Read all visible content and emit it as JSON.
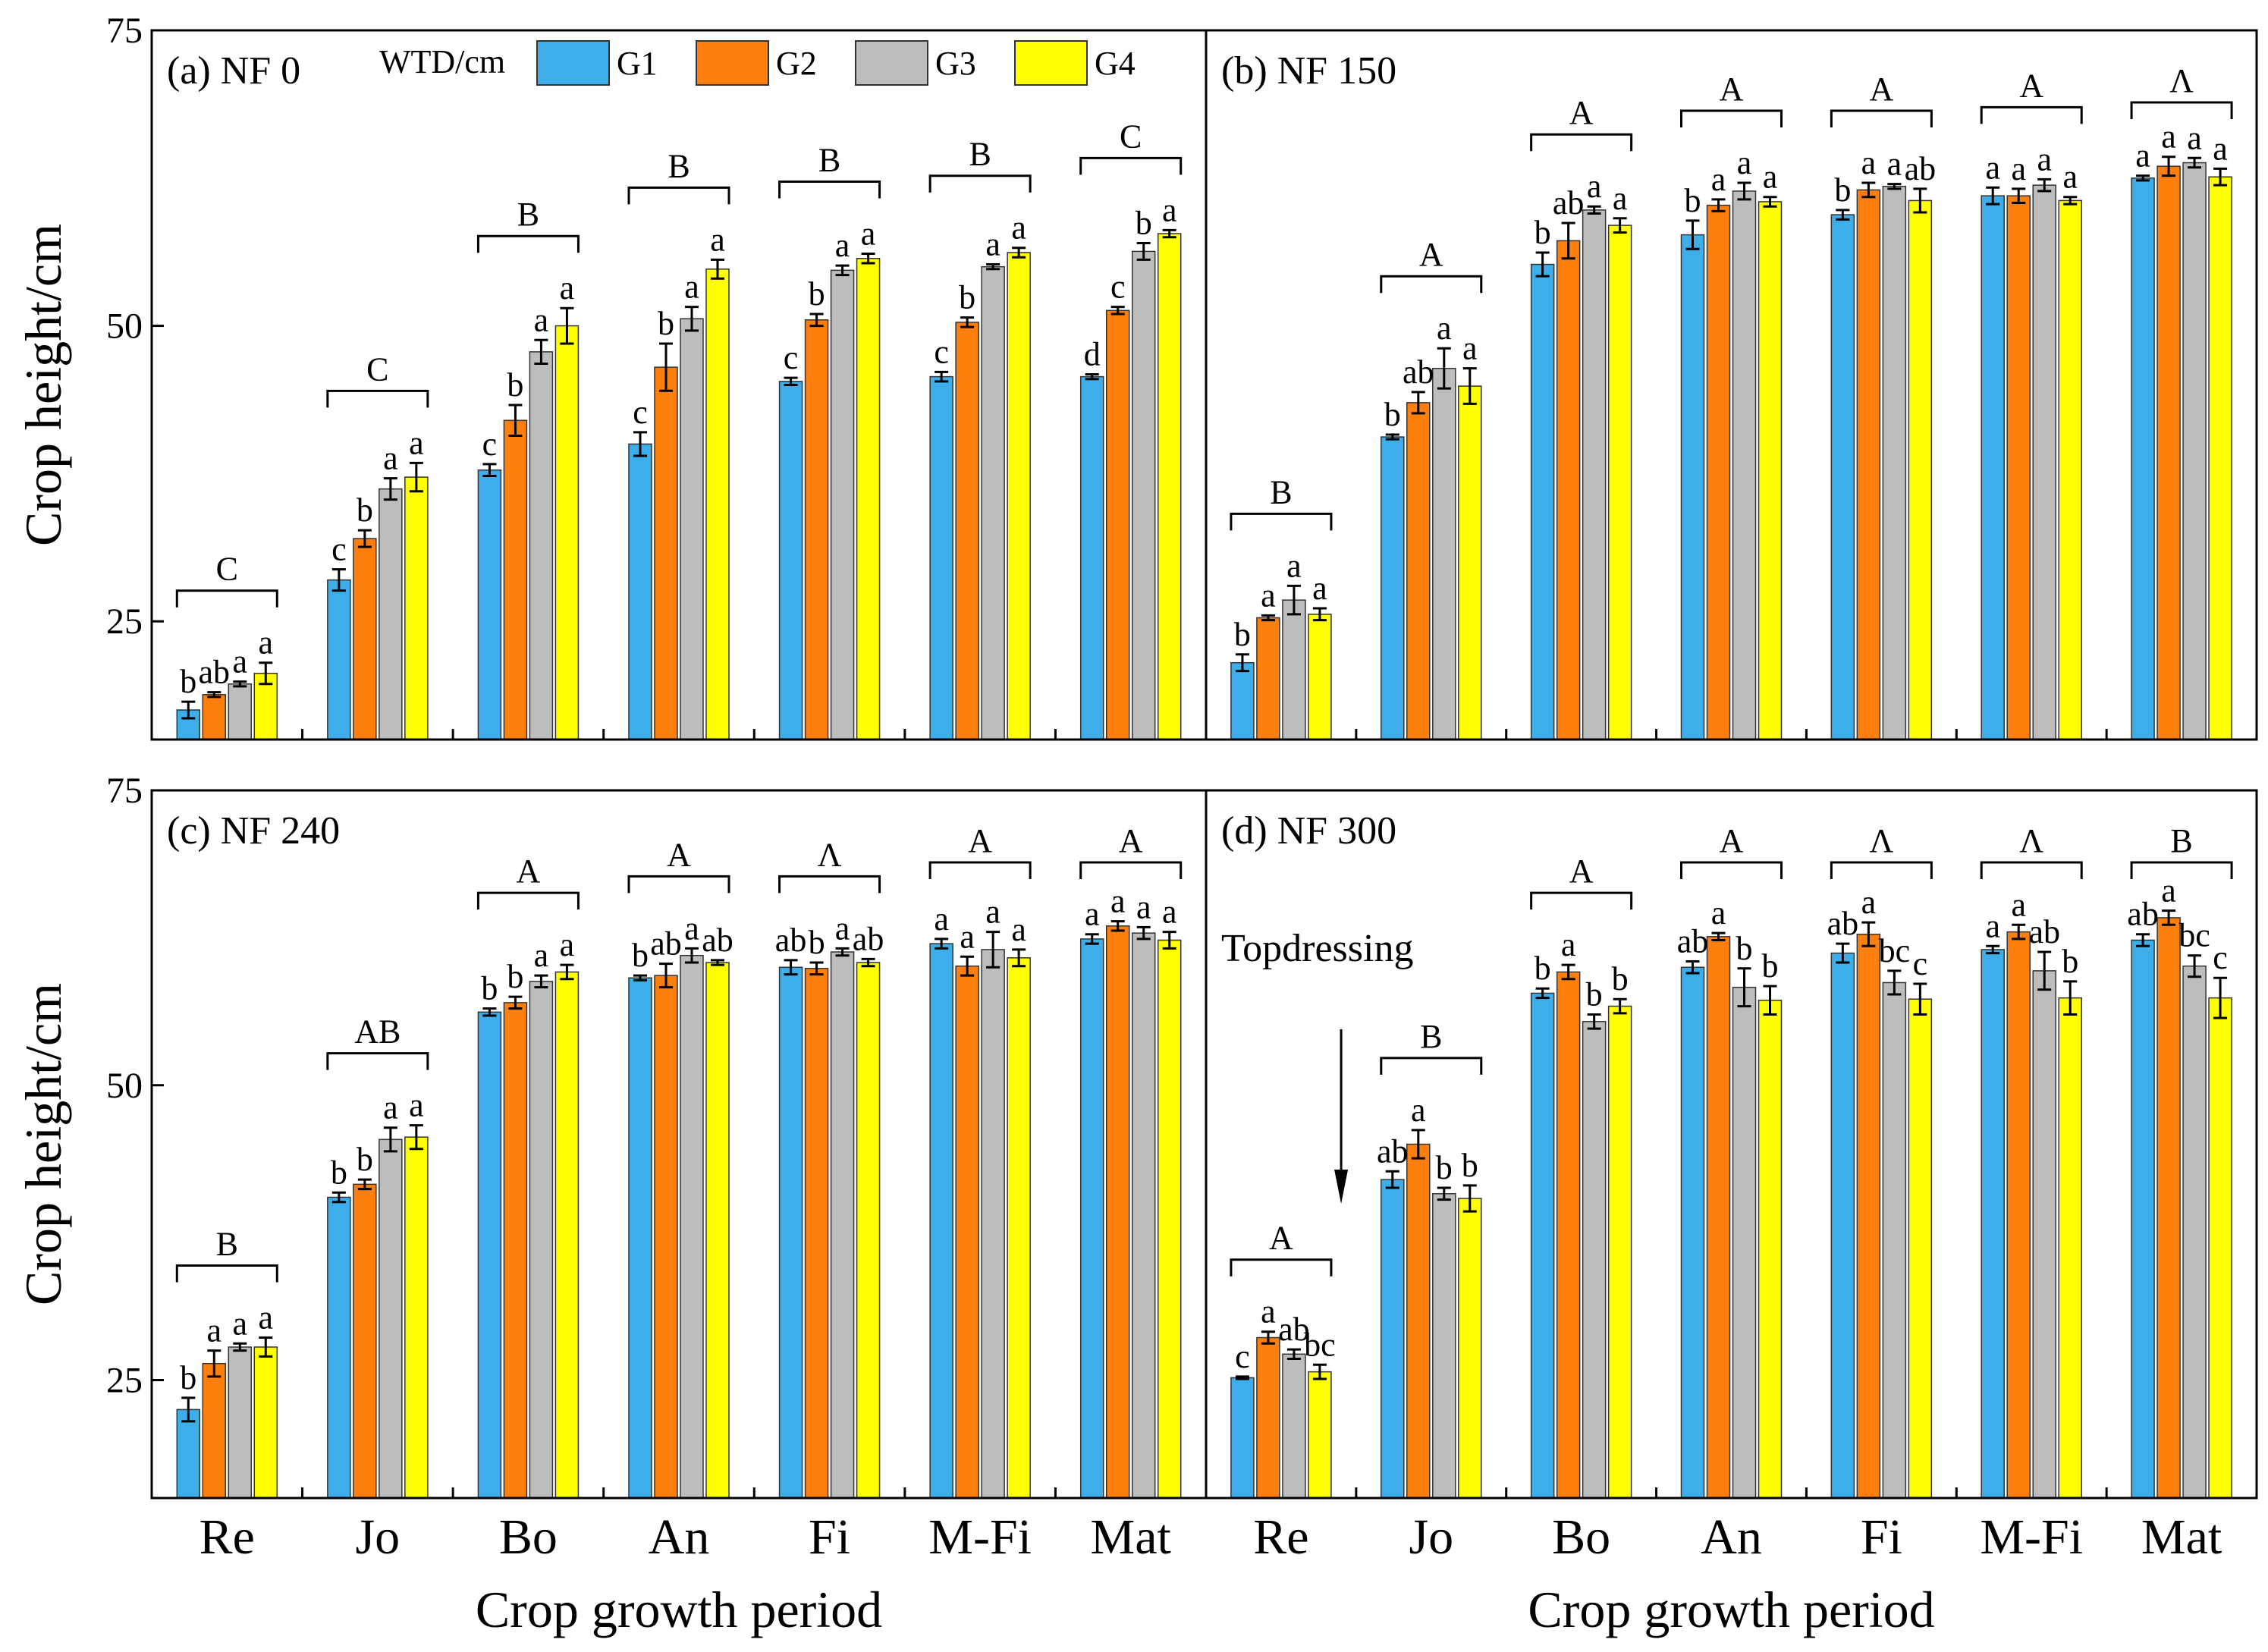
{
  "chart_data": {
    "type": "bar",
    "legend": {
      "title": "WTD/cm",
      "entries": [
        "G1",
        "G2",
        "G3",
        "G4"
      ],
      "colors": [
        "#3daee9",
        "#ff7f0e",
        "#bdbdbd",
        "#ffff00"
      ],
      "position": "top"
    },
    "ylabel": "Crop height/cm",
    "xlabel": "Crop growth period",
    "ylim": [
      15,
      75
    ],
    "yticks": [
      25,
      50,
      75
    ],
    "categories": [
      "Re",
      "Jo",
      "Bo",
      "An",
      "Fi",
      "M-Fi",
      "Mat"
    ],
    "panels": [
      {
        "label": "(a) NF 0",
        "series": [
          {
            "name": "G1",
            "values": [
              17.5,
              28.5,
              37.8,
              40.0,
              45.3,
              45.7,
              45.7
            ],
            "errors": [
              0.7,
              0.9,
              0.5,
              1.0,
              0.3,
              0.4,
              0.2
            ]
          },
          {
            "name": "G2",
            "values": [
              18.8,
              32.0,
              42.0,
              46.5,
              50.5,
              50.3,
              51.3
            ],
            "errors": [
              0.2,
              0.7,
              1.3,
              2.0,
              0.5,
              0.4,
              0.3
            ]
          },
          {
            "name": "G3",
            "values": [
              19.7,
              36.2,
              47.8,
              50.6,
              54.7,
              55.0,
              56.3
            ],
            "errors": [
              0.2,
              0.9,
              1.0,
              1.0,
              0.4,
              0.2,
              0.7
            ]
          },
          {
            "name": "G4",
            "values": [
              20.6,
              37.2,
              50.0,
              54.8,
              55.7,
              56.2,
              57.8
            ],
            "errors": [
              0.9,
              1.2,
              1.5,
              0.8,
              0.4,
              0.4,
              0.3
            ]
          }
        ],
        "sig_letters": [
          [
            "b",
            "ab",
            "a",
            "a"
          ],
          [
            "c",
            "b",
            "a",
            "a"
          ],
          [
            "c",
            "b",
            "a",
            "a"
          ],
          [
            "c",
            "b",
            "a",
            "a"
          ],
          [
            "c",
            "b",
            "a",
            "a"
          ],
          [
            "c",
            "b",
            "a",
            "a"
          ],
          [
            "d",
            "c",
            "b",
            "a"
          ]
        ],
        "group_letters": [
          "C",
          "C",
          "B",
          "B",
          "B",
          "B",
          "C"
        ]
      },
      {
        "label": "(b) NF 150",
        "series": [
          {
            "name": "G1",
            "values": [
              21.5,
              40.6,
              55.2,
              57.7,
              59.4,
              61.0,
              62.5
            ],
            "errors": [
              0.7,
              0.2,
              1.0,
              1.2,
              0.4,
              0.7,
              0.2
            ]
          },
          {
            "name": "G2",
            "values": [
              25.3,
              43.5,
              57.2,
              60.2,
              61.5,
              61.0,
              63.5
            ],
            "errors": [
              0.2,
              0.9,
              1.5,
              0.5,
              0.6,
              0.6,
              0.8
            ]
          },
          {
            "name": "G3",
            "values": [
              26.8,
              46.4,
              59.8,
              61.4,
              61.8,
              61.9,
              63.8
            ],
            "errors": [
              1.2,
              1.7,
              0.3,
              0.7,
              0.2,
              0.5,
              0.4
            ]
          },
          {
            "name": "G4",
            "values": [
              25.6,
              44.9,
              58.5,
              60.5,
              60.6,
              60.6,
              62.6
            ],
            "errors": [
              0.5,
              1.5,
              0.6,
              0.4,
              1.0,
              0.3,
              0.7
            ]
          }
        ],
        "sig_letters": [
          [
            "b",
            "a",
            "a",
            "a"
          ],
          [
            "b",
            "ab",
            "a",
            "a"
          ],
          [
            "b",
            "ab",
            "a",
            "a"
          ],
          [
            "b",
            "a",
            "a",
            "a"
          ],
          [
            "b",
            "a",
            "a",
            "ab"
          ],
          [
            "a",
            "a",
            "a",
            "a"
          ],
          [
            "a",
            "a",
            "a",
            "a"
          ]
        ],
        "group_letters": [
          "B",
          "A",
          "A",
          "A",
          "A",
          "A",
          "Λ"
        ]
      },
      {
        "label": "(c) NF 240",
        "series": [
          {
            "name": "G1",
            "values": [
              22.5,
              40.5,
              56.2,
              59.1,
              60.0,
              62.0,
              62.4
            ],
            "errors": [
              1.0,
              0.4,
              0.3,
              0.2,
              0.6,
              0.4,
              0.4
            ]
          },
          {
            "name": "G2",
            "values": [
              26.4,
              41.6,
              57.0,
              59.3,
              59.9,
              60.1,
              63.5
            ],
            "errors": [
              1.1,
              0.4,
              0.5,
              1.0,
              0.5,
              0.8,
              0.4
            ]
          },
          {
            "name": "G3",
            "values": [
              27.8,
              45.4,
              58.8,
              61.0,
              61.3,
              61.5,
              62.9
            ],
            "errors": [
              0.3,
              1.0,
              0.5,
              0.6,
              0.3,
              1.5,
              0.5
            ]
          },
          {
            "name": "G4",
            "values": [
              27.8,
              45.6,
              59.6,
              60.4,
              60.4,
              60.8,
              62.3
            ],
            "errors": [
              0.8,
              1.0,
              0.6,
              0.2,
              0.3,
              0.7,
              0.7
            ]
          }
        ],
        "sig_letters": [
          [
            "b",
            "a",
            "a",
            "a"
          ],
          [
            "b",
            "b",
            "a",
            "a"
          ],
          [
            "b",
            "b",
            "a",
            "a"
          ],
          [
            "b",
            "ab",
            "a",
            "ab"
          ],
          [
            "ab",
            "b",
            "a",
            "ab"
          ],
          [
            "a",
            "a",
            "a",
            "a"
          ],
          [
            "a",
            "a",
            "a",
            "a"
          ]
        ],
        "group_letters": [
          "B",
          "AB",
          "A",
          "A",
          "Λ",
          "A",
          "A"
        ]
      },
      {
        "label": "(d) NF 300",
        "annotation": "Topdressing",
        "series": [
          {
            "name": "G1",
            "values": [
              25.2,
              42.0,
              57.8,
              60.0,
              61.2,
              61.5,
              62.3
            ],
            "errors": [
              0.1,
              0.7,
              0.4,
              0.5,
              0.8,
              0.3,
              0.5
            ]
          },
          {
            "name": "G2",
            "values": [
              28.6,
              45.0,
              59.6,
              62.6,
              62.8,
              63.0,
              64.2
            ],
            "errors": [
              0.5,
              1.2,
              0.6,
              0.3,
              1.0,
              0.6,
              0.6
            ]
          },
          {
            "name": "G3",
            "values": [
              27.2,
              40.8,
              55.4,
              58.3,
              58.7,
              59.7,
              60.1
            ],
            "errors": [
              0.4,
              0.5,
              0.6,
              1.6,
              1.0,
              1.6,
              0.9
            ]
          },
          {
            "name": "G4",
            "values": [
              25.7,
              40.4,
              56.7,
              57.2,
              57.3,
              57.4,
              57.4
            ],
            "errors": [
              0.6,
              1.1,
              0.6,
              1.2,
              1.3,
              1.4,
              1.7
            ]
          }
        ],
        "sig_letters": [
          [
            "c",
            "a",
            "ab",
            "bc"
          ],
          [
            "ab",
            "a",
            "b",
            "b"
          ],
          [
            "b",
            "a",
            "b",
            "b"
          ],
          [
            "ab",
            "a",
            "b",
            "b"
          ],
          [
            "ab",
            "a",
            "bc",
            "c"
          ],
          [
            "a",
            "a",
            "ab",
            "b"
          ],
          [
            "ab",
            "a",
            "bc",
            "c"
          ]
        ],
        "group_letters": [
          "A",
          "B",
          "A",
          "A",
          "Λ",
          "Λ",
          "B"
        ]
      }
    ]
  }
}
